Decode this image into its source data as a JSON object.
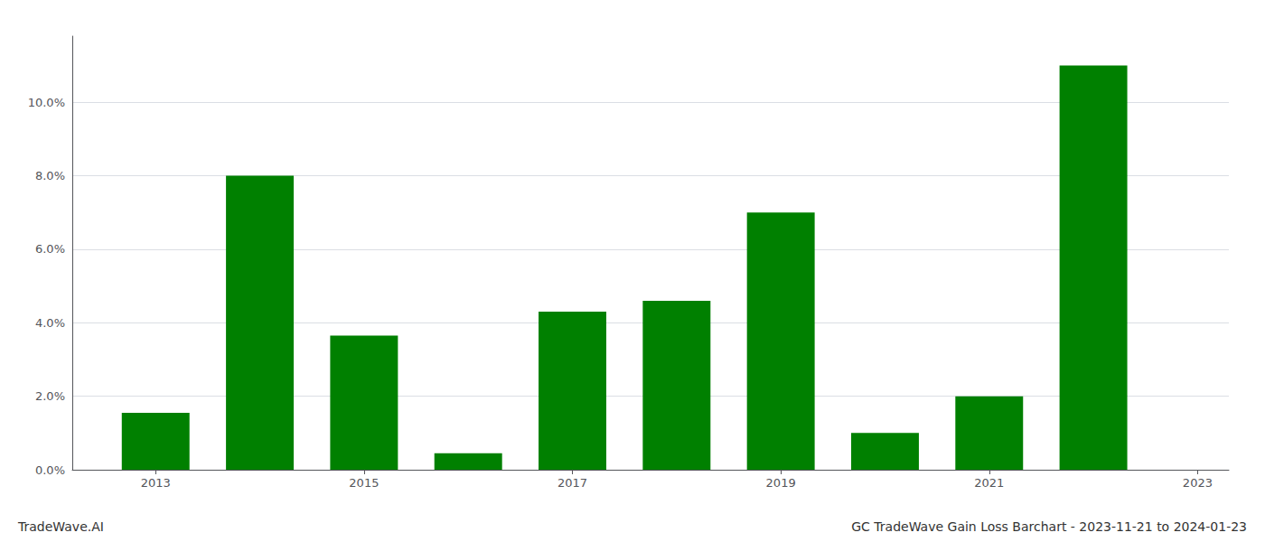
{
  "chart_data": {
    "type": "bar",
    "x": [
      2013,
      2014,
      2015,
      2016,
      2017,
      2018,
      2019,
      2020,
      2021,
      2022
    ],
    "values": [
      0.0155,
      0.08,
      0.0365,
      0.0045,
      0.043,
      0.046,
      0.07,
      0.01,
      0.02,
      0.11
    ],
    "color": "#008000",
    "xlim": [
      2012.2,
      2023.3
    ],
    "xticks": [
      2013,
      2015,
      2017,
      2019,
      2021,
      2023
    ],
    "ylim": [
      0.0,
      0.118
    ],
    "yticks": [
      {
        "value": 0.0,
        "label": "0.0%"
      },
      {
        "value": 0.02,
        "label": "2.0%"
      },
      {
        "value": 0.04,
        "label": "4.0%"
      },
      {
        "value": 0.06,
        "label": "6.0%"
      },
      {
        "value": 0.08,
        "label": "8.0%"
      },
      {
        "value": 0.1,
        "label": "10.0%"
      }
    ],
    "grid": true,
    "annotations": [
      "TradeWave.AI",
      "GC TradeWave Gain Loss Barchart - 2023-11-21 to 2024-01-23"
    ]
  }
}
